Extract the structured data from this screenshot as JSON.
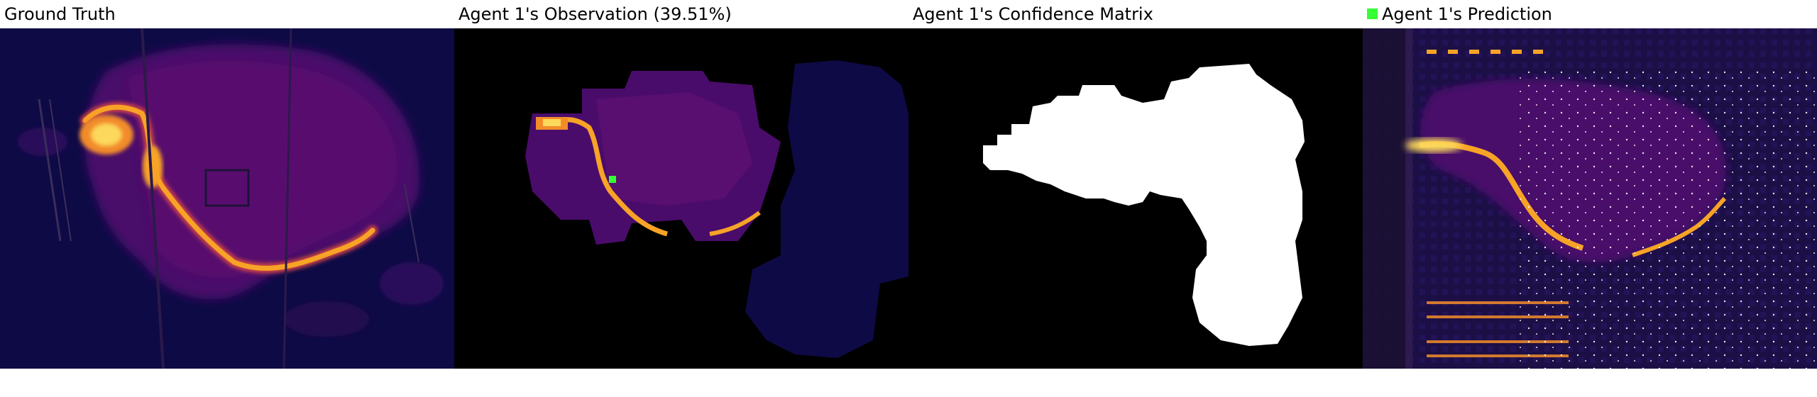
{
  "panels": [
    {
      "title": "Ground Truth"
    },
    {
      "title": "Agent 1's Observation (39.51%)"
    },
    {
      "title": "Agent 1's Confidence Matrix"
    },
    {
      "title": "Agent 1's Prediction",
      "legend_color": "#33ff33"
    }
  ],
  "colors": {
    "fire_bg": "#0e0a46",
    "fire_mid": "#4a0c6b",
    "fire_front": "#f7a326",
    "fire_hot": "#fcffa4",
    "mask": "#000000",
    "confidence": "#ffffff",
    "agent_marker": "#33ff33"
  }
}
